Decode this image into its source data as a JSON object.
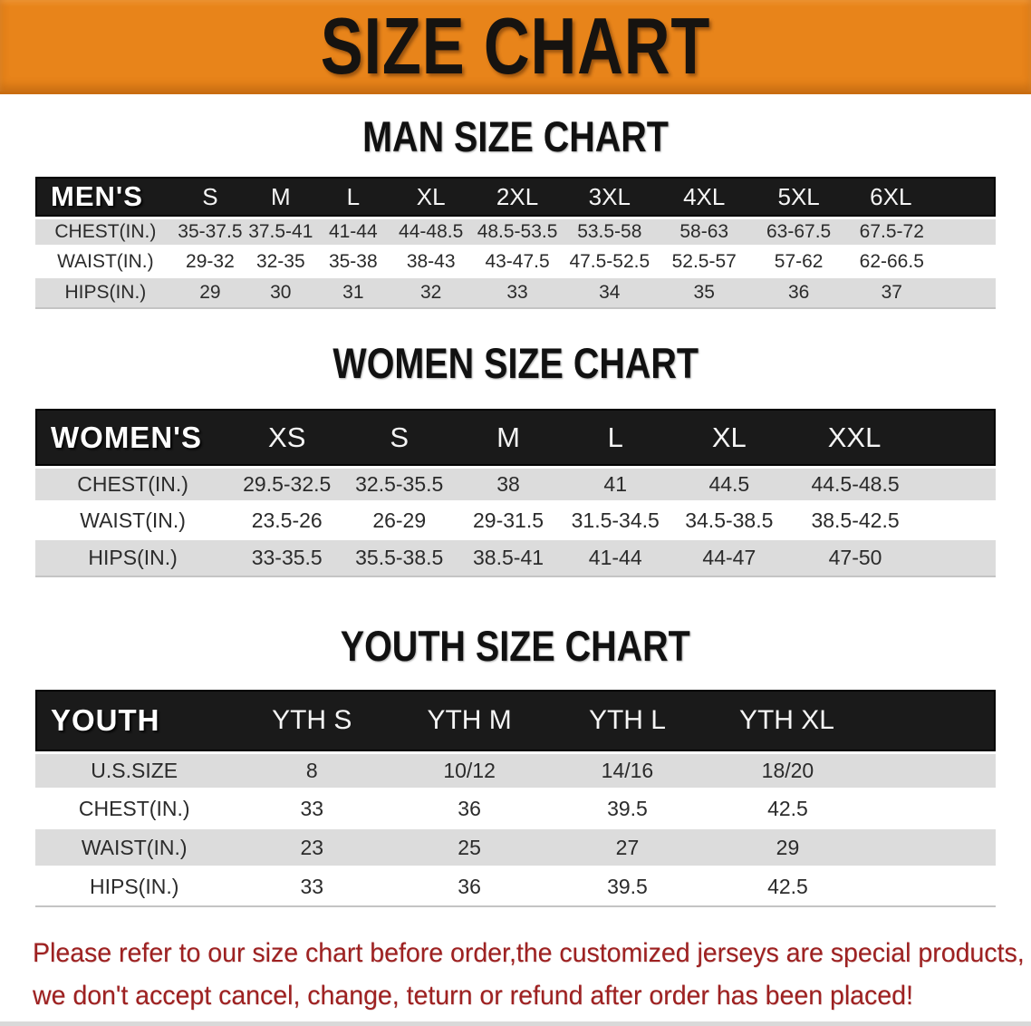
{
  "banner": {
    "title": "SIZE CHART"
  },
  "colors": {
    "banner_bg": "#E8841A",
    "header_bar": "#1A1A1A",
    "row_stripe": "#DCDCDC",
    "disclaimer_text": "#9E2121"
  },
  "sections": [
    {
      "id": "men",
      "title": "MAN SIZE CHART",
      "header_label": "MEN'S",
      "columns": [
        "S",
        "M",
        "L",
        "XL",
        "2XL",
        "3XL",
        "4XL",
        "5XL",
        "6XL"
      ],
      "rows": [
        {
          "label": "CHEST(IN.)",
          "values": [
            "35-37.5",
            "37.5-41",
            "41-44",
            "44-48.5",
            "48.5-53.5",
            "53.5-58",
            "58-63",
            "63-67.5",
            "67.5-72"
          ]
        },
        {
          "label": "WAIST(IN.)",
          "values": [
            "29-32",
            "32-35",
            "35-38",
            "38-43",
            "43-47.5",
            "47.5-52.5",
            "52.5-57",
            "57-62",
            "62-66.5"
          ]
        },
        {
          "label": "HIPS(IN.)",
          "values": [
            "29",
            "30",
            "31",
            "32",
            "33",
            "34",
            "35",
            "36",
            "37"
          ]
        }
      ]
    },
    {
      "id": "women",
      "title": "WOMEN SIZE CHART",
      "header_label": "WOMEN'S",
      "columns": [
        "XS",
        "S",
        "M",
        "L",
        "XL",
        "XXL"
      ],
      "rows": [
        {
          "label": "CHEST(IN.)",
          "values": [
            "29.5-32.5",
            "32.5-35.5",
            "38",
            "41",
            "44.5",
            "44.5-48.5"
          ]
        },
        {
          "label": "WAIST(IN.)",
          "values": [
            "23.5-26",
            "26-29",
            "29-31.5",
            "31.5-34.5",
            "34.5-38.5",
            "38.5-42.5"
          ]
        },
        {
          "label": "HIPS(IN.)",
          "values": [
            "33-35.5",
            "35.5-38.5",
            "38.5-41",
            "41-44",
            "44-47",
            "47-50"
          ]
        }
      ]
    },
    {
      "id": "youth",
      "title": "YOUTH SIZE CHART",
      "header_label": "YOUTH",
      "columns": [
        "YTH S",
        "YTH M",
        "YTH L",
        "YTH XL"
      ],
      "rows": [
        {
          "label": "U.S.SIZE",
          "values": [
            "8",
            "10/12",
            "14/16",
            "18/20"
          ]
        },
        {
          "label": "CHEST(IN.)",
          "values": [
            "33",
            "36",
            "39.5",
            "42.5"
          ]
        },
        {
          "label": "WAIST(IN.)",
          "values": [
            "23",
            "25",
            "27",
            "29"
          ]
        },
        {
          "label": "HIPS(IN.)",
          "values": [
            "33",
            "36",
            "39.5",
            "42.5"
          ]
        }
      ]
    }
  ],
  "disclaimer": {
    "line1": "Please refer to our size chart before order,the customized jerseys are special products,",
    "line2": "we don't accept cancel, change, teturn or refund after order has been placed!"
  }
}
